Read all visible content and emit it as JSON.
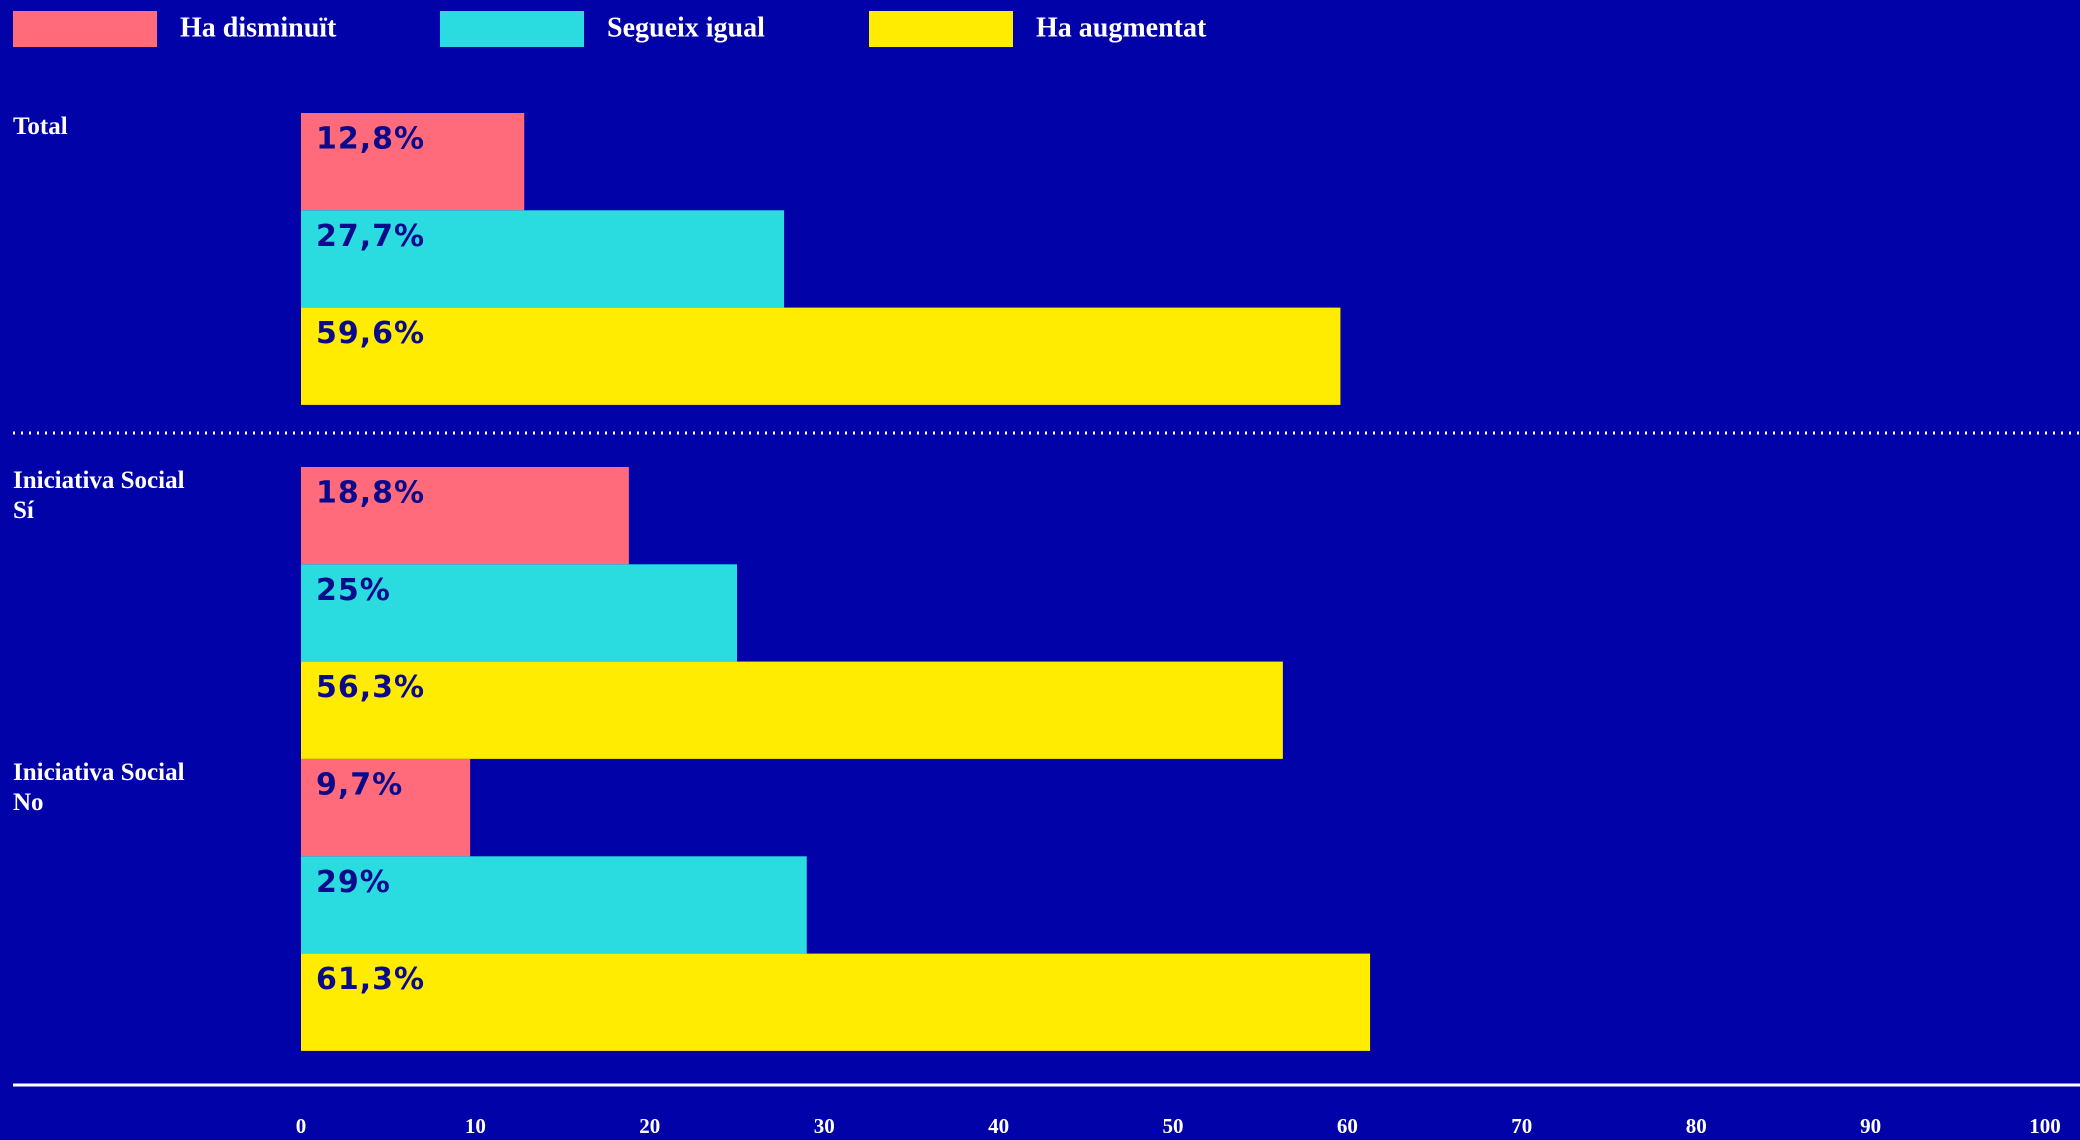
{
  "chart_data": {
    "type": "bar",
    "orientation": "horizontal",
    "categories": [
      "Total",
      "Iniciativa Social\nSí",
      "Iniciativa Social\nNo"
    ],
    "series": [
      {
        "name": "Ha disminuït",
        "color": "#ff6b7a",
        "values": [
          12.8,
          18.8,
          9.7
        ],
        "value_labels": [
          "12,8%",
          "18,8%",
          "9,7%"
        ]
      },
      {
        "name": "Segueix igual",
        "color": "#2adbe0",
        "values": [
          27.7,
          25,
          29
        ],
        "value_labels": [
          "27,7%",
          "25%",
          "29%"
        ]
      },
      {
        "name": "Ha augmentat",
        "color": "#ffec00",
        "values": [
          59.6,
          56.3,
          61.3
        ],
        "value_labels": [
          "59,6%",
          "56,3%",
          "61,3%"
        ]
      }
    ],
    "xlim": [
      0,
      100
    ],
    "xticks": [
      0,
      10,
      20,
      30,
      40,
      50,
      60,
      70,
      80,
      90,
      100
    ],
    "background": "#0202a9",
    "label_color": "#0a0a8c"
  }
}
